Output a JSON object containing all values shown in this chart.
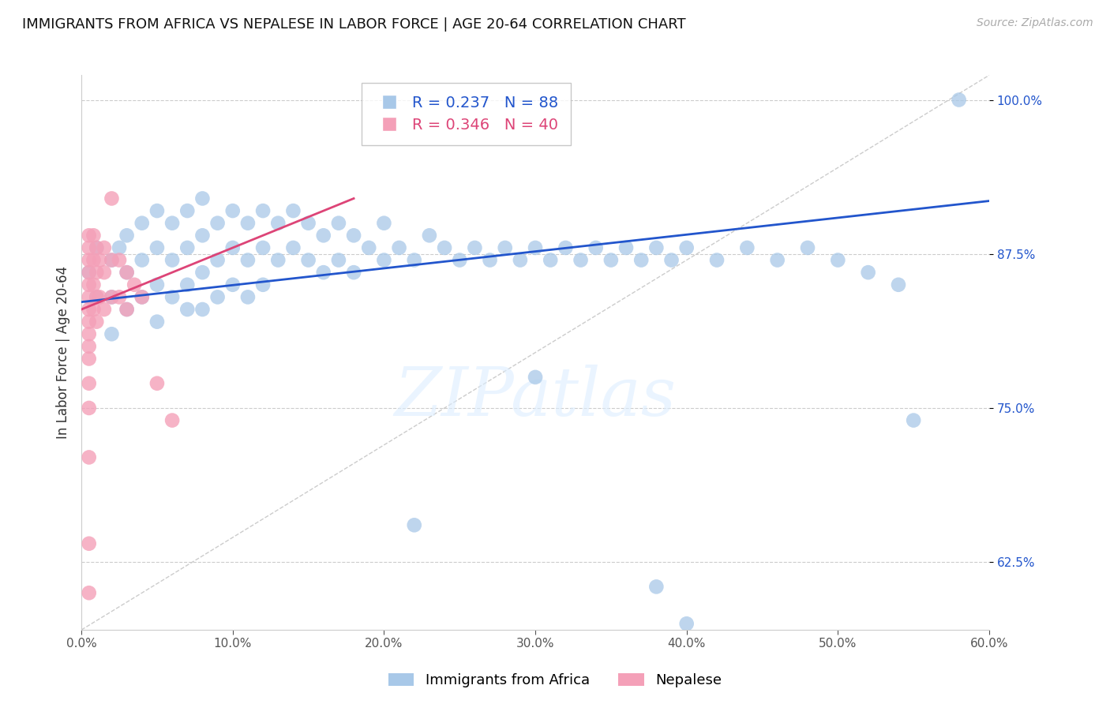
{
  "title": "IMMIGRANTS FROM AFRICA VS NEPALESE IN LABOR FORCE | AGE 20-64 CORRELATION CHART",
  "source": "Source: ZipAtlas.com",
  "ylabel": "In Labor Force | Age 20-64",
  "legend_labels": [
    "Immigrants from Africa",
    "Nepalese"
  ],
  "blue_R": 0.237,
  "blue_N": 88,
  "pink_R": 0.346,
  "pink_N": 40,
  "blue_color": "#a8c8e8",
  "pink_color": "#f4a0b8",
  "blue_line_color": "#2255cc",
  "pink_line_color": "#dd4477",
  "ref_line_color": "#cccccc",
  "watermark_text": "ZIPatlas",
  "watermark_color": "#ddeeff",
  "xlim": [
    0.0,
    0.6
  ],
  "ylim": [
    0.57,
    1.02
  ],
  "yticks": [
    0.625,
    0.75,
    0.875,
    1.0
  ],
  "xticks": [
    0.0,
    0.1,
    0.2,
    0.3,
    0.4,
    0.5,
    0.6
  ],
  "blue_line_x0": 0.0,
  "blue_line_y0": 0.836,
  "blue_line_x1": 0.6,
  "blue_line_y1": 0.918,
  "pink_line_x0": 0.0,
  "pink_line_y0": 0.83,
  "pink_line_x1": 0.18,
  "pink_line_y1": 0.92,
  "blue_x": [
    0.005,
    0.01,
    0.01,
    0.02,
    0.02,
    0.02,
    0.025,
    0.03,
    0.03,
    0.03,
    0.04,
    0.04,
    0.04,
    0.05,
    0.05,
    0.05,
    0.05,
    0.06,
    0.06,
    0.06,
    0.07,
    0.07,
    0.07,
    0.07,
    0.08,
    0.08,
    0.08,
    0.08,
    0.09,
    0.09,
    0.09,
    0.1,
    0.1,
    0.1,
    0.11,
    0.11,
    0.11,
    0.12,
    0.12,
    0.12,
    0.13,
    0.13,
    0.14,
    0.14,
    0.15,
    0.15,
    0.16,
    0.16,
    0.17,
    0.17,
    0.18,
    0.18,
    0.19,
    0.2,
    0.2,
    0.21,
    0.22,
    0.23,
    0.24,
    0.25,
    0.26,
    0.27,
    0.28,
    0.29,
    0.3,
    0.31,
    0.32,
    0.33,
    0.34,
    0.35,
    0.36,
    0.37,
    0.38,
    0.39,
    0.4,
    0.42,
    0.44,
    0.46,
    0.48,
    0.5,
    0.52,
    0.54,
    0.22,
    0.3,
    0.38,
    0.4,
    0.58,
    0.55
  ],
  "blue_y": [
    0.86,
    0.88,
    0.84,
    0.87,
    0.84,
    0.81,
    0.88,
    0.89,
    0.86,
    0.83,
    0.9,
    0.87,
    0.84,
    0.91,
    0.88,
    0.85,
    0.82,
    0.9,
    0.87,
    0.84,
    0.91,
    0.88,
    0.85,
    0.83,
    0.92,
    0.89,
    0.86,
    0.83,
    0.9,
    0.87,
    0.84,
    0.91,
    0.88,
    0.85,
    0.9,
    0.87,
    0.84,
    0.91,
    0.88,
    0.85,
    0.9,
    0.87,
    0.91,
    0.88,
    0.9,
    0.87,
    0.89,
    0.86,
    0.9,
    0.87,
    0.89,
    0.86,
    0.88,
    0.9,
    0.87,
    0.88,
    0.87,
    0.89,
    0.88,
    0.87,
    0.88,
    0.87,
    0.88,
    0.87,
    0.88,
    0.87,
    0.88,
    0.87,
    0.88,
    0.87,
    0.88,
    0.87,
    0.88,
    0.87,
    0.88,
    0.87,
    0.88,
    0.87,
    0.88,
    0.87,
    0.86,
    0.85,
    0.655,
    0.775,
    0.605,
    0.575,
    1.0,
    0.74
  ],
  "pink_x": [
    0.005,
    0.005,
    0.005,
    0.005,
    0.005,
    0.005,
    0.005,
    0.005,
    0.005,
    0.005,
    0.005,
    0.005,
    0.005,
    0.008,
    0.008,
    0.008,
    0.008,
    0.01,
    0.01,
    0.01,
    0.01,
    0.012,
    0.012,
    0.015,
    0.015,
    0.015,
    0.02,
    0.02,
    0.025,
    0.025,
    0.03,
    0.03,
    0.035,
    0.04,
    0.05,
    0.06,
    0.02,
    0.005,
    0.005,
    0.005
  ],
  "pink_y": [
    0.89,
    0.88,
    0.87,
    0.86,
    0.85,
    0.84,
    0.83,
    0.82,
    0.81,
    0.8,
    0.79,
    0.77,
    0.75,
    0.89,
    0.87,
    0.85,
    0.83,
    0.88,
    0.86,
    0.84,
    0.82,
    0.87,
    0.84,
    0.88,
    0.86,
    0.83,
    0.87,
    0.84,
    0.87,
    0.84,
    0.86,
    0.83,
    0.85,
    0.84,
    0.77,
    0.74,
    0.92,
    0.71,
    0.64,
    0.6
  ]
}
